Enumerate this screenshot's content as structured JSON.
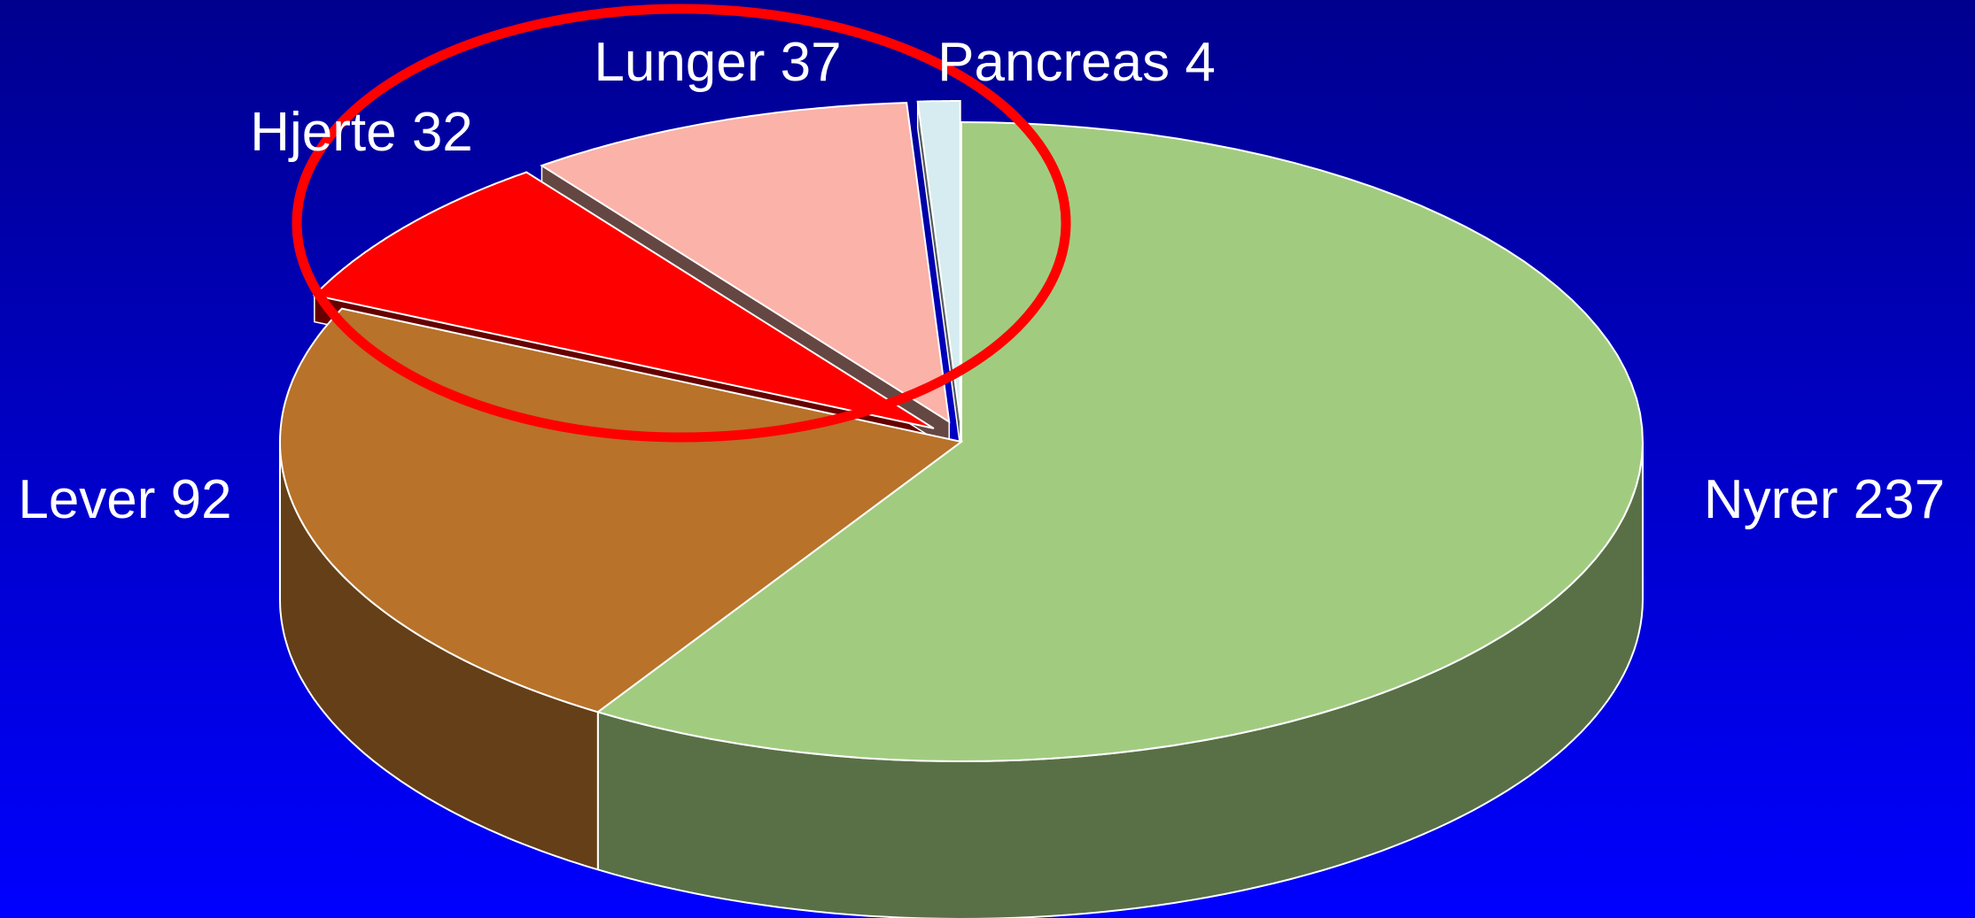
{
  "chart_data": {
    "type": "pie3d",
    "categories": [
      "Nyrer",
      "Lever",
      "Hjerte",
      "Lunger",
      "Pancreas"
    ],
    "values": [
      237,
      92,
      32,
      37,
      4
    ],
    "colors": [
      "#a1cc80",
      "#b8722a",
      "#ff0000",
      "#fbb2a8",
      "#d6ecf0"
    ]
  }
}
